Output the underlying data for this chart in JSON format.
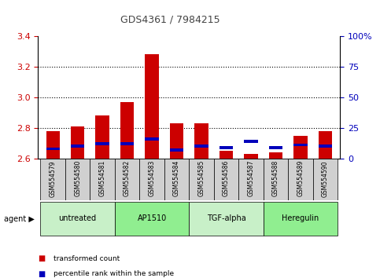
{
  "title": "GDS4361 / 7984215",
  "samples": [
    "GSM554579",
    "GSM554580",
    "GSM554581",
    "GSM554582",
    "GSM554583",
    "GSM554584",
    "GSM554585",
    "GSM554586",
    "GSM554587",
    "GSM554588",
    "GSM554589",
    "GSM554590"
  ],
  "red_values": [
    2.78,
    2.81,
    2.88,
    2.97,
    3.28,
    2.83,
    2.83,
    2.65,
    2.63,
    2.64,
    2.75,
    2.78
  ],
  "blue_percentile": [
    8,
    10,
    12,
    12,
    16,
    7,
    10,
    9,
    14,
    9,
    11,
    10
  ],
  "ylim_left": [
    2.6,
    3.4
  ],
  "ylim_right": [
    0,
    100
  ],
  "yticks_left": [
    2.6,
    2.8,
    3.0,
    3.2,
    3.4
  ],
  "yticks_right": [
    0,
    25,
    50,
    75,
    100
  ],
  "ytick_labels_right": [
    "0",
    "25",
    "50",
    "75",
    "100%"
  ],
  "groups": [
    {
      "label": "untreated",
      "indices": [
        0,
        1,
        2
      ],
      "color": "#c8f0c8"
    },
    {
      "label": "AP1510",
      "indices": [
        3,
        4,
        5
      ],
      "color": "#90ee90"
    },
    {
      "label": "TGF-alpha",
      "indices": [
        6,
        7,
        8
      ],
      "color": "#c8f0c8"
    },
    {
      "label": "Heregulin",
      "indices": [
        9,
        10,
        11
      ],
      "color": "#90ee90"
    }
  ],
  "bar_width": 0.55,
  "baseline": 2.6,
  "red_color": "#cc0000",
  "blue_color": "#0000bb",
  "bg_color": "#ffffff",
  "left_tick_color": "#cc0000",
  "right_tick_color": "#0000bb",
  "title_color": "#444444",
  "xtick_bg": "#d8d8d8",
  "legend_items": [
    {
      "color": "#cc0000",
      "label": "transformed count"
    },
    {
      "color": "#0000bb",
      "label": "percentile rank within the sample"
    }
  ],
  "grid_lines": [
    2.8,
    3.0,
    3.2
  ]
}
